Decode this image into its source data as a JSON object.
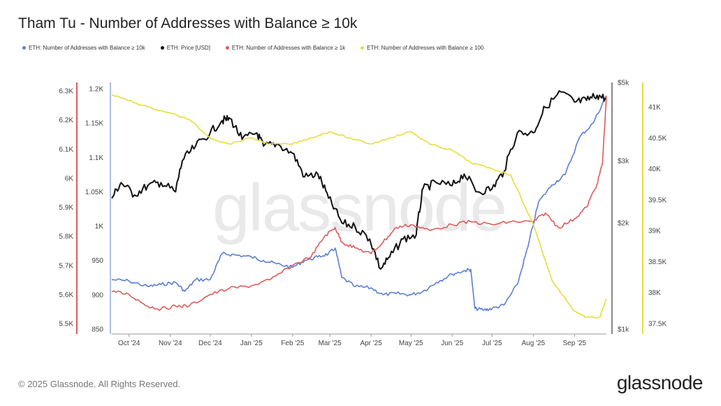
{
  "title": "Tham Tu - Number of Addresses with Balance ≥ 10k",
  "footer": "© 2025 Glassnode. All Rights Reserved.",
  "brand": "glassnode",
  "watermark": "glassnode",
  "chart_data": {
    "type": "line",
    "title": "Tham Tu - Number of Addresses with Balance ≥ 10k",
    "x_labels": [
      "Oct '24",
      "Nov '24",
      "Dec '24",
      "Jan '25",
      "Feb '25",
      "Mar '25",
      "Apr '25",
      "May '25",
      "Jun '25",
      "Jul '25",
      "Aug '25",
      "Sep '25"
    ],
    "x_range": [
      "2024-09-18",
      "2025-09-25"
    ],
    "legend_placement": "top-left",
    "grid": false,
    "axes": {
      "red_left": {
        "ticks": [
          "5.5K",
          "5.6K",
          "5.7K",
          "5.8K",
          "5.9K",
          "6K",
          "6.1K",
          "6.2K",
          "6.3K"
        ],
        "range": [
          5.5,
          6.3
        ],
        "color": "#e05a5a"
      },
      "blue_left": {
        "ticks": [
          "850",
          "900",
          "950",
          "1K",
          "1.05K",
          "1.1K",
          "1.15K",
          "1.2K"
        ],
        "range": [
          850,
          1200
        ],
        "color": "#5b7fd1"
      },
      "price_right": {
        "ticks": [
          "$1k",
          "$2k",
          "$3k",
          "$5k"
        ],
        "log": true,
        "range": [
          1000,
          5000
        ],
        "color": "#111111"
      },
      "yellow_right": {
        "ticks": [
          "37.5K",
          "38K",
          "38.5K",
          "39K",
          "39.5K",
          "40K",
          "40.5K",
          "41K"
        ],
        "range": [
          37.5,
          41.5
        ],
        "color": "#e8dc3c"
      }
    },
    "series": [
      {
        "name": "ETH: Number of Addresses with Balance ≥ 10k",
        "color": "#5b7fd1",
        "axis": "blue_left",
        "points": [
          [
            "2024-09-18",
            922
          ],
          [
            "2024-10-01",
            920
          ],
          [
            "2024-10-15",
            912
          ],
          [
            "2024-10-25",
            915
          ],
          [
            "2024-11-05",
            918
          ],
          [
            "2024-11-12",
            905
          ],
          [
            "2024-11-20",
            922
          ],
          [
            "2024-12-01",
            922
          ],
          [
            "2024-12-10",
            960
          ],
          [
            "2024-12-20",
            958
          ],
          [
            "2025-01-01",
            955
          ],
          [
            "2025-01-10",
            950
          ],
          [
            "2025-01-20",
            945
          ],
          [
            "2025-02-01",
            940
          ],
          [
            "2025-02-10",
            950
          ],
          [
            "2025-02-20",
            955
          ],
          [
            "2025-02-28",
            960
          ],
          [
            "2025-03-05",
            968
          ],
          [
            "2025-03-10",
            925
          ],
          [
            "2025-03-20",
            912
          ],
          [
            "2025-04-01",
            910
          ],
          [
            "2025-04-10",
            900
          ],
          [
            "2025-04-20",
            902
          ],
          [
            "2025-05-01",
            900
          ],
          [
            "2025-05-10",
            905
          ],
          [
            "2025-05-20",
            918
          ],
          [
            "2025-06-01",
            930
          ],
          [
            "2025-06-10",
            935
          ],
          [
            "2025-06-15",
            937
          ],
          [
            "2025-06-18",
            880
          ],
          [
            "2025-06-25",
            878
          ],
          [
            "2025-07-01",
            880
          ],
          [
            "2025-07-10",
            885
          ],
          [
            "2025-07-20",
            915
          ],
          [
            "2025-07-28",
            970
          ],
          [
            "2025-08-05",
            1035
          ],
          [
            "2025-08-15",
            1060
          ],
          [
            "2025-08-25",
            1075
          ],
          [
            "2025-09-05",
            1130
          ],
          [
            "2025-09-15",
            1150
          ],
          [
            "2025-09-25",
            1190
          ]
        ]
      },
      {
        "name": "ETH: Price [USD]",
        "color": "#111111",
        "axis": "price_right",
        "points": [
          [
            "2024-09-18",
            2350
          ],
          [
            "2024-09-25",
            2600
          ],
          [
            "2024-10-05",
            2400
          ],
          [
            "2024-10-15",
            2550
          ],
          [
            "2024-10-25",
            2600
          ],
          [
            "2024-11-05",
            2450
          ],
          [
            "2024-11-10",
            3000
          ],
          [
            "2024-11-20",
            3300
          ],
          [
            "2024-12-01",
            3600
          ],
          [
            "2024-12-10",
            3900
          ],
          [
            "2024-12-16",
            3950
          ],
          [
            "2024-12-25",
            3450
          ],
          [
            "2025-01-05",
            3600
          ],
          [
            "2025-01-10",
            3300
          ],
          [
            "2025-01-20",
            3350
          ],
          [
            "2025-02-01",
            3150
          ],
          [
            "2025-02-10",
            2700
          ],
          [
            "2025-02-20",
            2750
          ],
          [
            "2025-02-28",
            2350
          ],
          [
            "2025-03-10",
            2000
          ],
          [
            "2025-03-20",
            1950
          ],
          [
            "2025-03-31",
            1800
          ],
          [
            "2025-04-08",
            1480
          ],
          [
            "2025-04-15",
            1600
          ],
          [
            "2025-04-25",
            1800
          ],
          [
            "2025-05-05",
            1850
          ],
          [
            "2025-05-10",
            2500
          ],
          [
            "2025-05-20",
            2600
          ],
          [
            "2025-06-01",
            2550
          ],
          [
            "2025-06-10",
            2750
          ],
          [
            "2025-06-20",
            2450
          ],
          [
            "2025-07-01",
            2500
          ],
          [
            "2025-07-10",
            2800
          ],
          [
            "2025-07-20",
            3600
          ],
          [
            "2025-08-01",
            3600
          ],
          [
            "2025-08-10",
            4250
          ],
          [
            "2025-08-22",
            4700
          ],
          [
            "2025-09-01",
            4400
          ],
          [
            "2025-09-10",
            4450
          ],
          [
            "2025-09-18",
            4600
          ],
          [
            "2025-09-25",
            4500
          ]
        ]
      },
      {
        "name": "ETH: Number of Addresses with Balance ≥ 1k",
        "color": "#e05a5a",
        "axis": "red_left",
        "points": [
          [
            "2024-09-18",
            5.61
          ],
          [
            "2024-10-01",
            5.6
          ],
          [
            "2024-10-15",
            5.56
          ],
          [
            "2024-10-25",
            5.55
          ],
          [
            "2024-11-05",
            5.56
          ],
          [
            "2024-11-15",
            5.56
          ],
          [
            "2024-12-01",
            5.6
          ],
          [
            "2024-12-15",
            5.62
          ],
          [
            "2025-01-01",
            5.63
          ],
          [
            "2025-01-15",
            5.65
          ],
          [
            "2025-02-01",
            5.7
          ],
          [
            "2025-02-15",
            5.73
          ],
          [
            "2025-02-25",
            5.8
          ],
          [
            "2025-03-05",
            5.83
          ],
          [
            "2025-03-10",
            5.78
          ],
          [
            "2025-03-20",
            5.76
          ],
          [
            "2025-04-01",
            5.74
          ],
          [
            "2025-04-10",
            5.78
          ],
          [
            "2025-04-20",
            5.83
          ],
          [
            "2025-05-01",
            5.84
          ],
          [
            "2025-05-15",
            5.82
          ],
          [
            "2025-06-01",
            5.84
          ],
          [
            "2025-06-15",
            5.85
          ],
          [
            "2025-07-01",
            5.84
          ],
          [
            "2025-07-15",
            5.85
          ],
          [
            "2025-08-01",
            5.85
          ],
          [
            "2025-08-10",
            5.88
          ],
          [
            "2025-08-20",
            5.83
          ],
          [
            "2025-09-01",
            5.86
          ],
          [
            "2025-09-10",
            5.9
          ],
          [
            "2025-09-18",
            5.98
          ],
          [
            "2025-09-22",
            6.05
          ],
          [
            "2025-09-25",
            6.28
          ]
        ]
      },
      {
        "name": "ETH: Number of Addresses with Balance ≥ 100",
        "color": "#e8dc3c",
        "axis": "yellow_right",
        "points": [
          [
            "2024-09-18",
            41.2
          ],
          [
            "2024-10-01",
            41.1
          ],
          [
            "2024-10-15",
            41.0
          ],
          [
            "2024-11-01",
            40.9
          ],
          [
            "2024-11-15",
            40.8
          ],
          [
            "2024-12-01",
            40.5
          ],
          [
            "2024-12-15",
            40.4
          ],
          [
            "2025-01-01",
            40.5
          ],
          [
            "2025-01-15",
            40.4
          ],
          [
            "2025-02-01",
            40.4
          ],
          [
            "2025-02-15",
            40.5
          ],
          [
            "2025-03-01",
            40.6
          ],
          [
            "2025-03-15",
            40.5
          ],
          [
            "2025-04-01",
            40.4
          ],
          [
            "2025-04-15",
            40.5
          ],
          [
            "2025-05-01",
            40.6
          ],
          [
            "2025-05-15",
            40.4
          ],
          [
            "2025-06-01",
            40.3
          ],
          [
            "2025-06-15",
            40.1
          ],
          [
            "2025-07-01",
            40.0
          ],
          [
            "2025-07-15",
            39.9
          ],
          [
            "2025-08-01",
            39.1
          ],
          [
            "2025-08-15",
            38.2
          ],
          [
            "2025-08-25",
            37.9
          ],
          [
            "2025-09-01",
            37.7
          ],
          [
            "2025-09-10",
            37.6
          ],
          [
            "2025-09-20",
            37.6
          ],
          [
            "2025-09-25",
            37.9
          ]
        ]
      }
    ]
  }
}
